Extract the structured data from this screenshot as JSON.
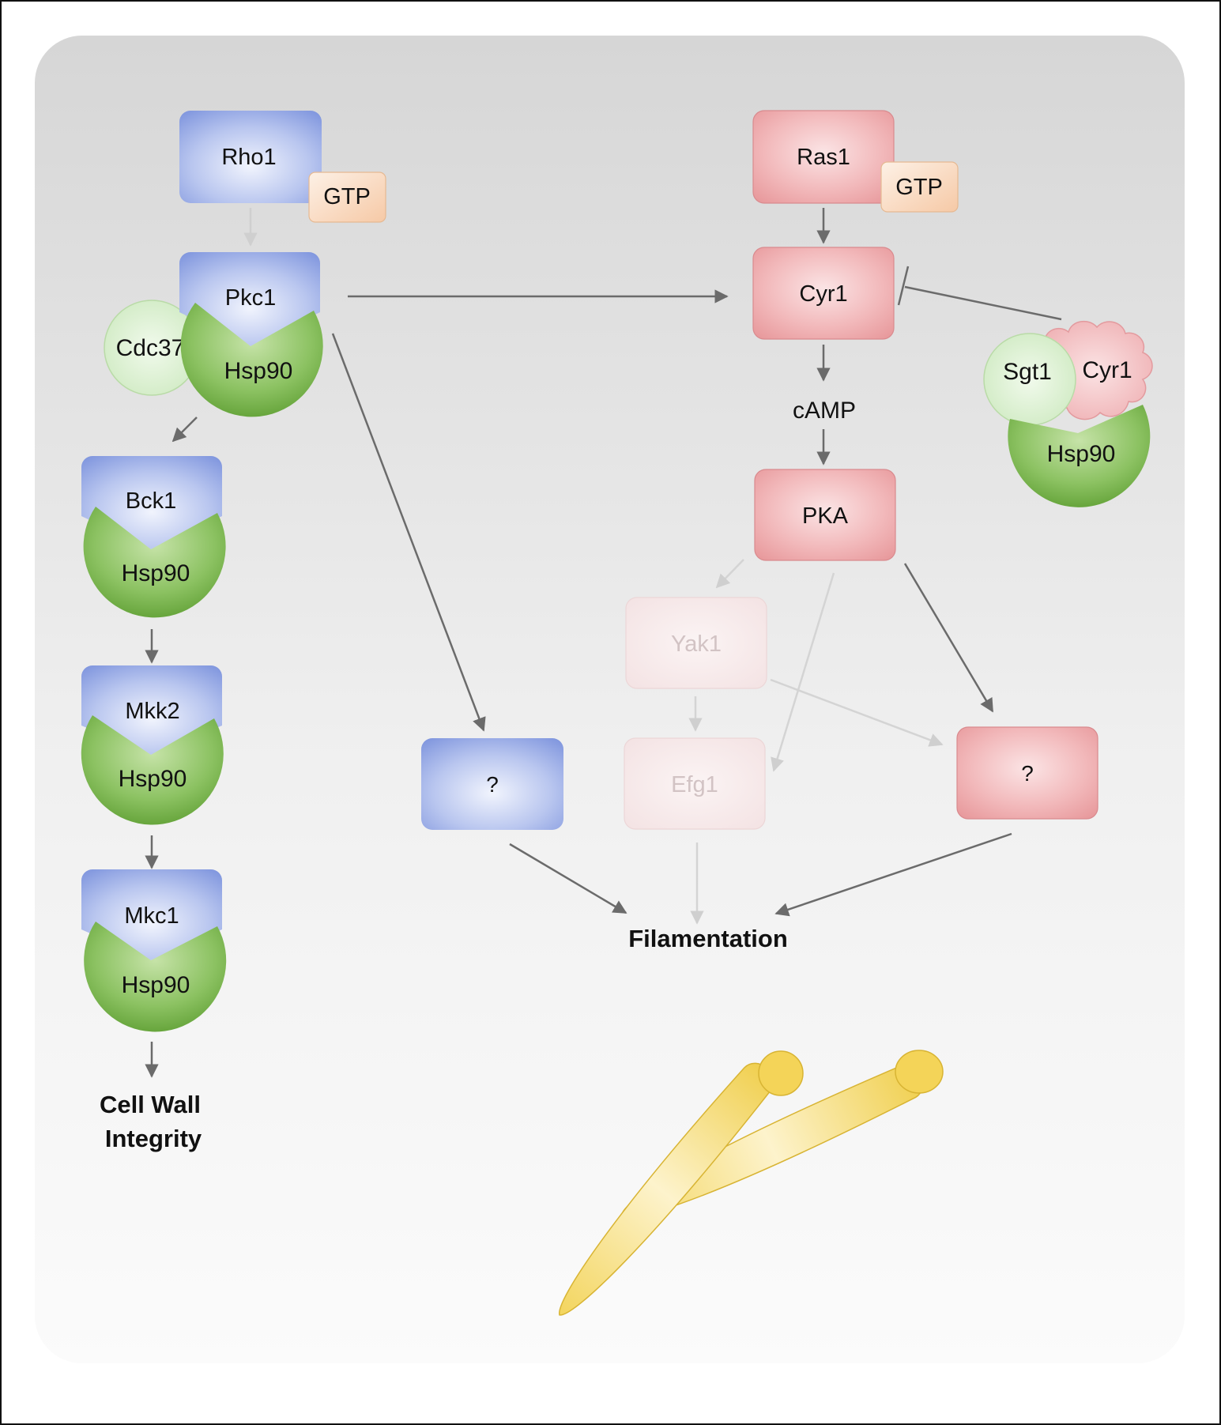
{
  "nodes": {
    "rho1": "Rho1",
    "rho1_gtp": "GTP",
    "pkc1": "Pkc1",
    "pkc1_hsp90": "Hsp90",
    "cdc37": "Cdc37",
    "bck1": "Bck1",
    "bck1_hsp90": "Hsp90",
    "mkk2": "Mkk2",
    "mkk2_hsp90": "Hsp90",
    "mkc1": "Mkc1",
    "mkc1_hsp90": "Hsp90",
    "cell_wall_line1": "Cell Wall",
    "cell_wall_line2": "Integrity",
    "blue_unknown": "?",
    "ras1": "Ras1",
    "ras1_gtp": "GTP",
    "cyr1": "Cyr1",
    "camp": "cAMP",
    "pka": "PKA",
    "yak1": "Yak1",
    "efg1": "Efg1",
    "red_unknown": "?",
    "filamentation": "Filamentation",
    "complex_sgt1": "Sgt1",
    "complex_cyr1": "Cyr1",
    "complex_hsp90": "Hsp90"
  },
  "colors": {
    "blue_pathway": "#8fa3e0",
    "red_pathway": "#eaa0a3",
    "hsp90_green": "#78b54a",
    "cochaperone_light_green": "#d7efcc",
    "gtp_peach": "#f8cfae",
    "faded_node": "#f6e6e7",
    "arrow_gray": "#6b6b6b",
    "faded_arrow": "#d4d4d4",
    "cell_yellow": "#f2d35a"
  }
}
